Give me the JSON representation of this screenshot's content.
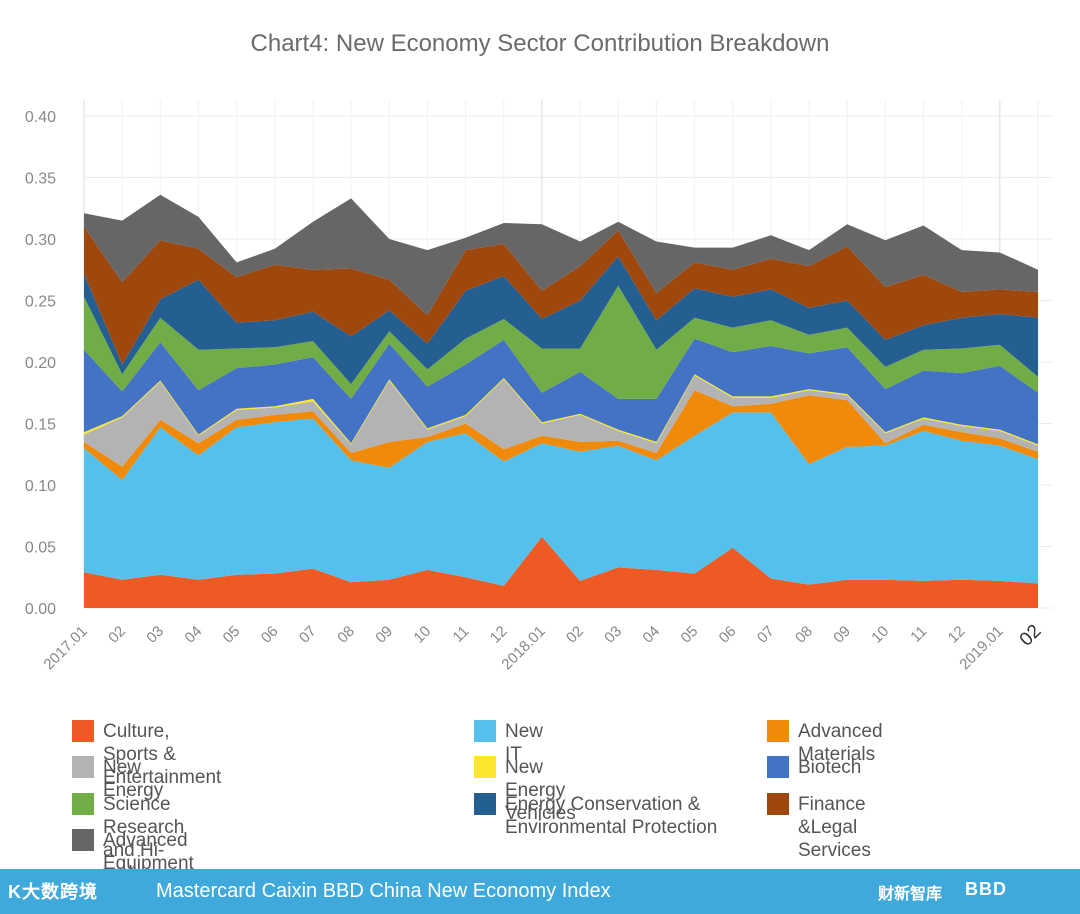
{
  "chart_data": {
    "type": "area",
    "stacked": true,
    "title": "Chart4: New Economy Sector Contribution Breakdown",
    "xlabel": "",
    "ylabel": "",
    "ylim": [
      0,
      0.4
    ],
    "yticks": [
      "0.00",
      "0.05",
      "0.10",
      "0.15",
      "0.20",
      "0.25",
      "0.30",
      "0.35",
      "0.40"
    ],
    "x": [
      "2017.01",
      "02",
      "03",
      "04",
      "05",
      "06",
      "07",
      "08",
      "09",
      "10",
      "11",
      "12",
      "2018.01",
      "02",
      "03",
      "04",
      "05",
      "06",
      "07",
      "08",
      "09",
      "10",
      "11",
      "12",
      "2019.01",
      "02"
    ],
    "series": [
      {
        "name": "Culture, Sports & Entertainment",
        "color": "#ee5a24",
        "values": [
          0.029,
          0.023,
          0.027,
          0.023,
          0.027,
          0.028,
          0.032,
          0.021,
          0.023,
          0.031,
          0.025,
          0.018,
          0.058,
          0.022,
          0.033,
          0.031,
          0.028,
          0.049,
          0.024,
          0.019,
          0.023,
          0.023,
          0.022,
          0.023,
          0.022,
          0.02
        ]
      },
      {
        "name": "New IT",
        "color": "#55c0ec",
        "values": [
          0.101,
          0.081,
          0.12,
          0.101,
          0.12,
          0.123,
          0.122,
          0.099,
          0.091,
          0.104,
          0.117,
          0.101,
          0.076,
          0.105,
          0.099,
          0.089,
          0.112,
          0.11,
          0.135,
          0.098,
          0.108,
          0.109,
          0.122,
          0.113,
          0.11,
          0.101
        ]
      },
      {
        "name": "Advanced Materials",
        "color": "#f08a0a",
        "values": [
          0.005,
          0.011,
          0.006,
          0.01,
          0.006,
          0.006,
          0.006,
          0.006,
          0.021,
          0.004,
          0.008,
          0.01,
          0.006,
          0.008,
          0.004,
          0.006,
          0.037,
          0.005,
          0.007,
          0.056,
          0.038,
          0.002,
          0.005,
          0.007,
          0.006,
          0.006
        ]
      },
      {
        "name": "New Energy",
        "color": "#b3b3b3",
        "values": [
          0.006,
          0.04,
          0.031,
          0.006,
          0.008,
          0.006,
          0.008,
          0.007,
          0.05,
          0.006,
          0.006,
          0.057,
          0.01,
          0.022,
          0.008,
          0.008,
          0.012,
          0.007,
          0.005,
          0.004,
          0.004,
          0.008,
          0.005,
          0.005,
          0.006,
          0.005
        ]
      },
      {
        "name": "New Energy Vehicles",
        "color": "#fde72e",
        "values": [
          0.002,
          0.001,
          0.001,
          0.001,
          0.001,
          0.001,
          0.002,
          0.001,
          0.001,
          0.001,
          0.001,
          0.001,
          0.001,
          0.001,
          0.001,
          0.001,
          0.001,
          0.001,
          0.001,
          0.001,
          0.001,
          0.001,
          0.001,
          0.001,
          0.001,
          0.001
        ]
      },
      {
        "name": "Biotech",
        "color": "#4472c4",
        "values": [
          0.067,
          0.02,
          0.031,
          0.036,
          0.033,
          0.034,
          0.034,
          0.036,
          0.029,
          0.034,
          0.041,
          0.031,
          0.024,
          0.034,
          0.025,
          0.035,
          0.029,
          0.036,
          0.041,
          0.029,
          0.038,
          0.035,
          0.038,
          0.042,
          0.052,
          0.042
        ]
      },
      {
        "name": "Science Research and Hi-tech Services",
        "color": "#71ad47",
        "values": [
          0.043,
          0.014,
          0.02,
          0.033,
          0.016,
          0.014,
          0.013,
          0.012,
          0.01,
          0.014,
          0.021,
          0.017,
          0.036,
          0.019,
          0.092,
          0.04,
          0.017,
          0.02,
          0.021,
          0.015,
          0.016,
          0.018,
          0.017,
          0.02,
          0.017,
          0.013
        ]
      },
      {
        "name": "Energy Conservation & Environmental Protection",
        "color": "#255e91",
        "values": [
          0.019,
          0.008,
          0.015,
          0.057,
          0.021,
          0.022,
          0.024,
          0.039,
          0.017,
          0.021,
          0.039,
          0.035,
          0.024,
          0.039,
          0.024,
          0.024,
          0.024,
          0.025,
          0.025,
          0.022,
          0.022,
          0.022,
          0.02,
          0.025,
          0.025,
          0.048
        ]
      },
      {
        "name": "Finance &Legal Services",
        "color": "#9e480e",
        "values": [
          0.038,
          0.067,
          0.048,
          0.025,
          0.037,
          0.045,
          0.034,
          0.055,
          0.025,
          0.023,
          0.033,
          0.026,
          0.023,
          0.028,
          0.021,
          0.022,
          0.021,
          0.022,
          0.025,
          0.034,
          0.044,
          0.043,
          0.041,
          0.021,
          0.02,
          0.021
        ]
      },
      {
        "name": "Advanced Equipment Manufacturing",
        "color": "#666666",
        "values": [
          0.011,
          0.05,
          0.037,
          0.026,
          0.012,
          0.013,
          0.039,
          0.057,
          0.033,
          0.053,
          0.01,
          0.017,
          0.054,
          0.02,
          0.007,
          0.042,
          0.012,
          0.018,
          0.019,
          0.013,
          0.018,
          0.038,
          0.04,
          0.034,
          0.03,
          0.018
        ]
      }
    ]
  },
  "footer": {
    "left_brand": "K大数跨境",
    "title": "Mastercard Caixin BBD China New Economy Index",
    "right_brand_1": "财新智库",
    "right_brand_2": "BBD"
  }
}
